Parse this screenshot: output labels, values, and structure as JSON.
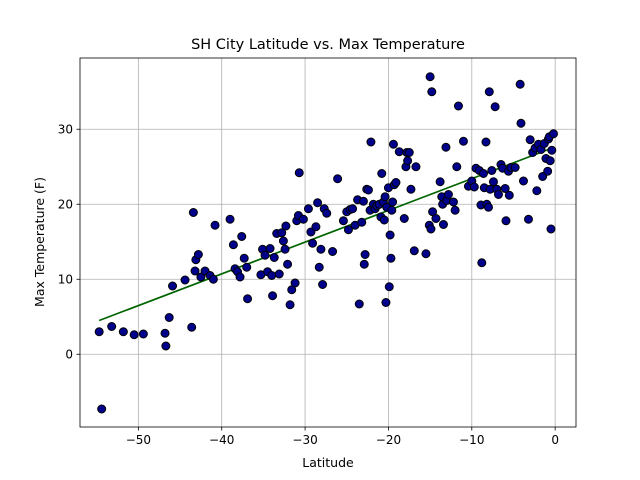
{
  "chart_data": {
    "type": "scatter",
    "title": "SH City Latitude vs. Max Temperature",
    "xlabel": "Latitude",
    "ylabel": "Max Temperature (F)",
    "xlim": [
      -57.0,
      2.5
    ],
    "ylim": [
      -9.7,
      39.5
    ],
    "xticks": [
      -50,
      -40,
      -30,
      -20,
      -10,
      0
    ],
    "xtick_labels": [
      "−50",
      "−40",
      "−30",
      "−20",
      "−10",
      "0"
    ],
    "yticks": [
      0,
      10,
      20,
      30
    ],
    "ytick_labels": [
      "0",
      "10",
      "20",
      "30"
    ],
    "grid": true,
    "marker_color": "#00008b",
    "marker_edge": "#000000",
    "line_color": "#006400",
    "regression": {
      "x": [
        -54.7,
        -0.1
      ],
      "y": [
        4.5,
        27.6
      ]
    },
    "points": [
      [
        -54.7,
        3.0
      ],
      [
        -54.4,
        -7.3
      ],
      [
        -53.2,
        3.7
      ],
      [
        -51.8,
        3.0
      ],
      [
        -50.5,
        2.6
      ],
      [
        -49.4,
        2.7
      ],
      [
        -46.8,
        2.8
      ],
      [
        -46.7,
        1.1
      ],
      [
        -46.3,
        4.9
      ],
      [
        -45.9,
        9.1
      ],
      [
        -44.4,
        9.9
      ],
      [
        -43.6,
        3.6
      ],
      [
        -43.4,
        18.9
      ],
      [
        -43.2,
        11.1
      ],
      [
        -43.1,
        12.6
      ],
      [
        -42.8,
        13.3
      ],
      [
        -42.5,
        10.3
      ],
      [
        -42.0,
        11.1
      ],
      [
        -41.4,
        10.5
      ],
      [
        -41.0,
        10.0
      ],
      [
        -40.8,
        17.2
      ],
      [
        -39.0,
        18.0
      ],
      [
        -38.6,
        14.6
      ],
      [
        -38.4,
        11.4
      ],
      [
        -38.1,
        11.0
      ],
      [
        -37.8,
        10.3
      ],
      [
        -37.6,
        15.7
      ],
      [
        -37.3,
        12.8
      ],
      [
        -37.0,
        11.6
      ],
      [
        -36.9,
        7.4
      ],
      [
        -35.3,
        10.6
      ],
      [
        -35.1,
        14.0
      ],
      [
        -34.8,
        13.2
      ],
      [
        -34.5,
        11.0
      ],
      [
        -34.2,
        14.1
      ],
      [
        -34.0,
        10.5
      ],
      [
        -33.9,
        7.8
      ],
      [
        -33.7,
        12.9
      ],
      [
        -33.4,
        16.1
      ],
      [
        -33.1,
        10.7
      ],
      [
        -32.8,
        16.2
      ],
      [
        -32.6,
        15.1
      ],
      [
        -32.4,
        14.0
      ],
      [
        -32.3,
        17.1
      ],
      [
        -32.1,
        12.0
      ],
      [
        -31.8,
        6.6
      ],
      [
        -31.6,
        8.6
      ],
      [
        -31.2,
        9.5
      ],
      [
        -31.0,
        17.8
      ],
      [
        -30.8,
        18.5
      ],
      [
        -30.7,
        24.2
      ],
      [
        -30.2,
        18.0
      ],
      [
        -29.6,
        19.4
      ],
      [
        -29.3,
        16.3
      ],
      [
        -29.1,
        14.8
      ],
      [
        -28.7,
        17.0
      ],
      [
        -28.5,
        20.2
      ],
      [
        -28.3,
        11.6
      ],
      [
        -28.1,
        14.0
      ],
      [
        -27.9,
        9.3
      ],
      [
        -27.7,
        19.4
      ],
      [
        -27.4,
        18.8
      ],
      [
        -26.7,
        13.7
      ],
      [
        -26.1,
        23.4
      ],
      [
        -25.4,
        17.8
      ],
      [
        -25.0,
        19.0
      ],
      [
        -24.8,
        16.6
      ],
      [
        -24.6,
        19.3
      ],
      [
        -24.3,
        19.4
      ],
      [
        -24.0,
        17.2
      ],
      [
        -23.7,
        20.6
      ],
      [
        -23.5,
        6.7
      ],
      [
        -23.2,
        17.6
      ],
      [
        -23.0,
        20.4
      ],
      [
        -22.9,
        12.0
      ],
      [
        -22.8,
        13.3
      ],
      [
        -22.6,
        22.0
      ],
      [
        -22.4,
        21.9
      ],
      [
        -22.2,
        19.2
      ],
      [
        -22.1,
        28.3
      ],
      [
        -21.8,
        20.0
      ],
      [
        -21.6,
        19.4
      ],
      [
        -21.4,
        19.8
      ],
      [
        -21.1,
        20.0
      ],
      [
        -20.9,
        18.3
      ],
      [
        -20.8,
        24.1
      ],
      [
        -20.6,
        20.3
      ],
      [
        -20.5,
        17.9
      ],
      [
        -20.4,
        21.0
      ],
      [
        -20.3,
        6.9
      ],
      [
        -20.2,
        19.6
      ],
      [
        -20.0,
        22.2
      ],
      [
        -19.9,
        9.0
      ],
      [
        -19.8,
        15.9
      ],
      [
        -19.7,
        12.8
      ],
      [
        -19.6,
        19.2
      ],
      [
        -19.5,
        20.3
      ],
      [
        -19.4,
        28.0
      ],
      [
        -19.3,
        22.6
      ],
      [
        -19.1,
        22.9
      ],
      [
        -18.7,
        27.0
      ],
      [
        -18.1,
        18.1
      ],
      [
        -17.9,
        25.0
      ],
      [
        -17.8,
        26.9
      ],
      [
        -17.7,
        25.8
      ],
      [
        -17.5,
        26.9
      ],
      [
        -17.3,
        22.0
      ],
      [
        -16.9,
        13.8
      ],
      [
        -16.7,
        25.0
      ],
      [
        -15.5,
        13.4
      ],
      [
        -15.1,
        17.2
      ],
      [
        -15.0,
        37.0
      ],
      [
        -14.9,
        16.7
      ],
      [
        -14.8,
        35.0
      ],
      [
        -14.7,
        19.0
      ],
      [
        -14.3,
        18.1
      ],
      [
        -13.8,
        23.0
      ],
      [
        -13.6,
        21.0
      ],
      [
        -13.5,
        20.0
      ],
      [
        -13.4,
        17.3
      ],
      [
        -13.1,
        27.6
      ],
      [
        -13.0,
        20.5
      ],
      [
        -12.8,
        21.3
      ],
      [
        -12.2,
        20.3
      ],
      [
        -12.0,
        19.2
      ],
      [
        -11.8,
        25.0
      ],
      [
        -11.6,
        33.1
      ],
      [
        -11.0,
        28.4
      ],
      [
        -10.4,
        22.4
      ],
      [
        -10.0,
        23.1
      ],
      [
        -9.7,
        22.3
      ],
      [
        -9.5,
        24.8
      ],
      [
        -9.1,
        24.5
      ],
      [
        -8.9,
        19.9
      ],
      [
        -8.8,
        12.2
      ],
      [
        -8.6,
        24.1
      ],
      [
        -8.5,
        22.2
      ],
      [
        -8.3,
        28.3
      ],
      [
        -8.2,
        20.0
      ],
      [
        -8.0,
        19.6
      ],
      [
        -7.9,
        35.0
      ],
      [
        -7.8,
        22.0
      ],
      [
        -7.6,
        24.5
      ],
      [
        -7.4,
        23.0
      ],
      [
        -7.2,
        33.0
      ],
      [
        -7.0,
        22.0
      ],
      [
        -6.8,
        21.3
      ],
      [
        -6.5,
        25.3
      ],
      [
        -6.3,
        24.8
      ],
      [
        -6.0,
        22.1
      ],
      [
        -5.9,
        17.8
      ],
      [
        -5.6,
        24.4
      ],
      [
        -5.5,
        21.2
      ],
      [
        -5.3,
        24.9
      ],
      [
        -4.8,
        24.9
      ],
      [
        -4.2,
        36.0
      ],
      [
        -4.1,
        30.8
      ],
      [
        -3.8,
        23.1
      ],
      [
        -3.2,
        18.0
      ],
      [
        -3.0,
        28.6
      ],
      [
        -2.7,
        26.9
      ],
      [
        -2.4,
        27.5
      ],
      [
        -2.2,
        21.8
      ],
      [
        -2.0,
        28.0
      ],
      [
        -1.7,
        27.3
      ],
      [
        -1.5,
        23.7
      ],
      [
        -1.3,
        28.1
      ],
      [
        -1.1,
        26.1
      ],
      [
        -0.9,
        24.4
      ],
      [
        -0.8,
        28.7
      ],
      [
        -0.7,
        29.0
      ],
      [
        -0.6,
        25.8
      ],
      [
        -0.5,
        16.7
      ],
      [
        -0.4,
        27.2
      ],
      [
        -0.2,
        29.4
      ]
    ]
  }
}
